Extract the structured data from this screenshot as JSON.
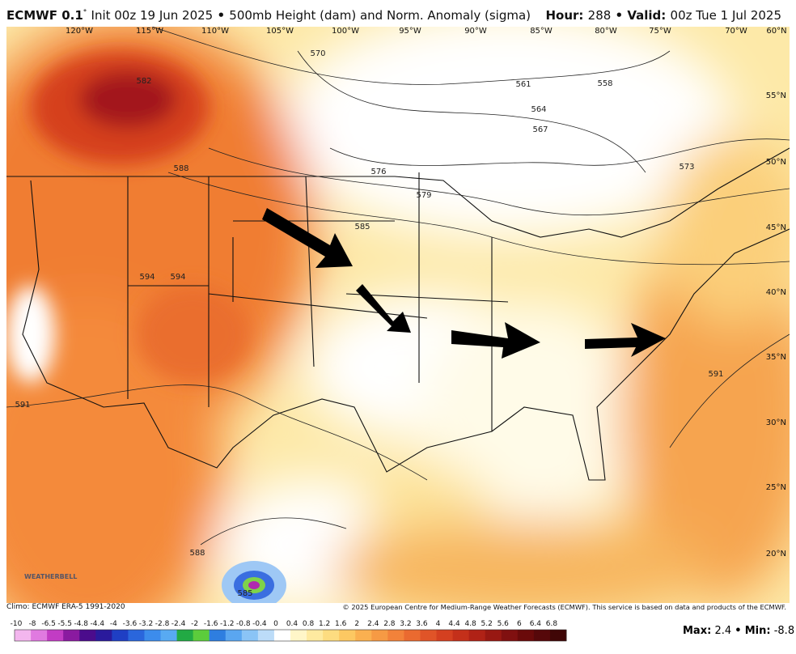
{
  "header": {
    "model": "ECMWF 0.1",
    "degree": "°",
    "init": "Init 00z 19 Jun 2025",
    "sep1": "•",
    "product": "500mb Height (dam) and Norm. Anomaly (sigma)",
    "hour_label": "Hour:",
    "hour": "288",
    "sep2": "•",
    "valid_label": "Valid:",
    "valid": "00z Tue 1 Jul 2025"
  },
  "longitude_labels": [
    "120°W",
    "115°W",
    "110°W",
    "105°W",
    "100°W",
    "95°W",
    "90°W",
    "85°W",
    "80°W",
    "75°W",
    "70°W",
    "60°N"
  ],
  "latitude_labels": [
    "55°N",
    "50°N",
    "45°N",
    "40°N",
    "35°N",
    "30°N",
    "25°N",
    "20°N"
  ],
  "contour_labels": [
    "582",
    "588",
    "570",
    "561",
    "558",
    "564",
    "567",
    "576",
    "579",
    "585",
    "573",
    "591",
    "594",
    "594",
    "591",
    "588",
    "585"
  ],
  "footer": {
    "climo": "Climo: ECMWF ERA-5 1991-2020",
    "copyright": "© 2025 European Centre for Medium-Range Weather Forecasts (ECMWF). This service is based on data and products of the ECMWF."
  },
  "colorbar": {
    "labels": [
      "-10",
      "-8",
      "-6.5",
      "-5.5",
      "-4.8",
      "-4.4",
      "-4",
      "-3.6",
      "-3.2",
      "-2.8",
      "-2.4",
      "-2",
      "-1.6",
      "-1.2",
      "-0.8",
      "-0.4",
      "0",
      "0.4",
      "0.8",
      "1.2",
      "1.6",
      "2",
      "2.4",
      "2.8",
      "3.2",
      "3.6",
      "4",
      "4.4",
      "4.8",
      "5.2",
      "5.6",
      "6",
      "6.4",
      "6.8"
    ]
  },
  "stats": {
    "max_label": "Max:",
    "max": "2.4",
    "sep": "•",
    "min_label": "Min:",
    "min": "-8.8"
  },
  "logo": "WEATHERBELL"
}
